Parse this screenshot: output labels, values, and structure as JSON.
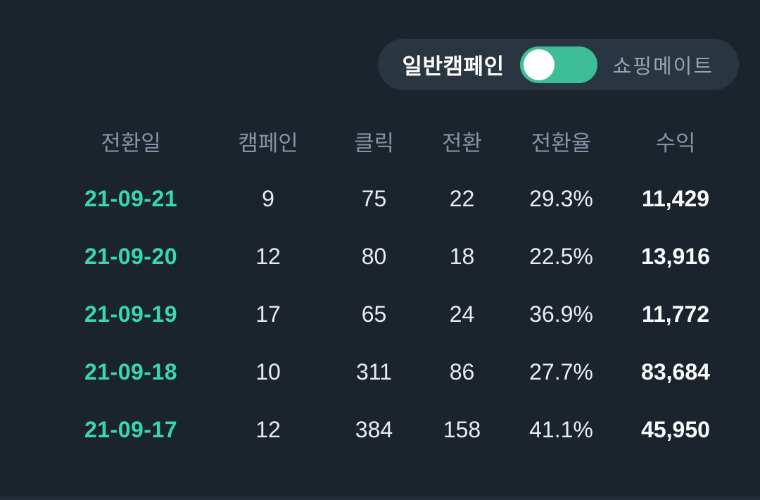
{
  "colors": {
    "bg": "#1B232D",
    "pill_bg": "#293541",
    "switch_green": "#3DBE97",
    "knob": "#FFFFFF",
    "header_text": "#8393A3",
    "date_accent": "#38D9A9",
    "body_text": "#E8ECEF",
    "revenue_text": "#FAFBFC",
    "muted_label": "#97A5B1",
    "divider": "#242E39"
  },
  "toggle": {
    "left_label": "일반캠페인",
    "right_label": "쇼핑메이트",
    "state": "left"
  },
  "table": {
    "columns": [
      "전환일",
      "캠페인",
      "클릭",
      "전환",
      "전환율",
      "수익"
    ],
    "rows": [
      {
        "date": "21-09-21",
        "campaign": "9",
        "clicks": "75",
        "conversions": "22",
        "rate": "29.3%",
        "revenue": "11,429"
      },
      {
        "date": "21-09-20",
        "campaign": "12",
        "clicks": "80",
        "conversions": "18",
        "rate": "22.5%",
        "revenue": "13,916"
      },
      {
        "date": "21-09-19",
        "campaign": "17",
        "clicks": "65",
        "conversions": "24",
        "rate": "36.9%",
        "revenue": "11,772"
      },
      {
        "date": "21-09-18",
        "campaign": "10",
        "clicks": "311",
        "conversions": "86",
        "rate": "27.7%",
        "revenue": "83,684"
      },
      {
        "date": "21-09-17",
        "campaign": "12",
        "clicks": "384",
        "conversions": "158",
        "rate": "41.1%",
        "revenue": "45,950"
      }
    ]
  }
}
